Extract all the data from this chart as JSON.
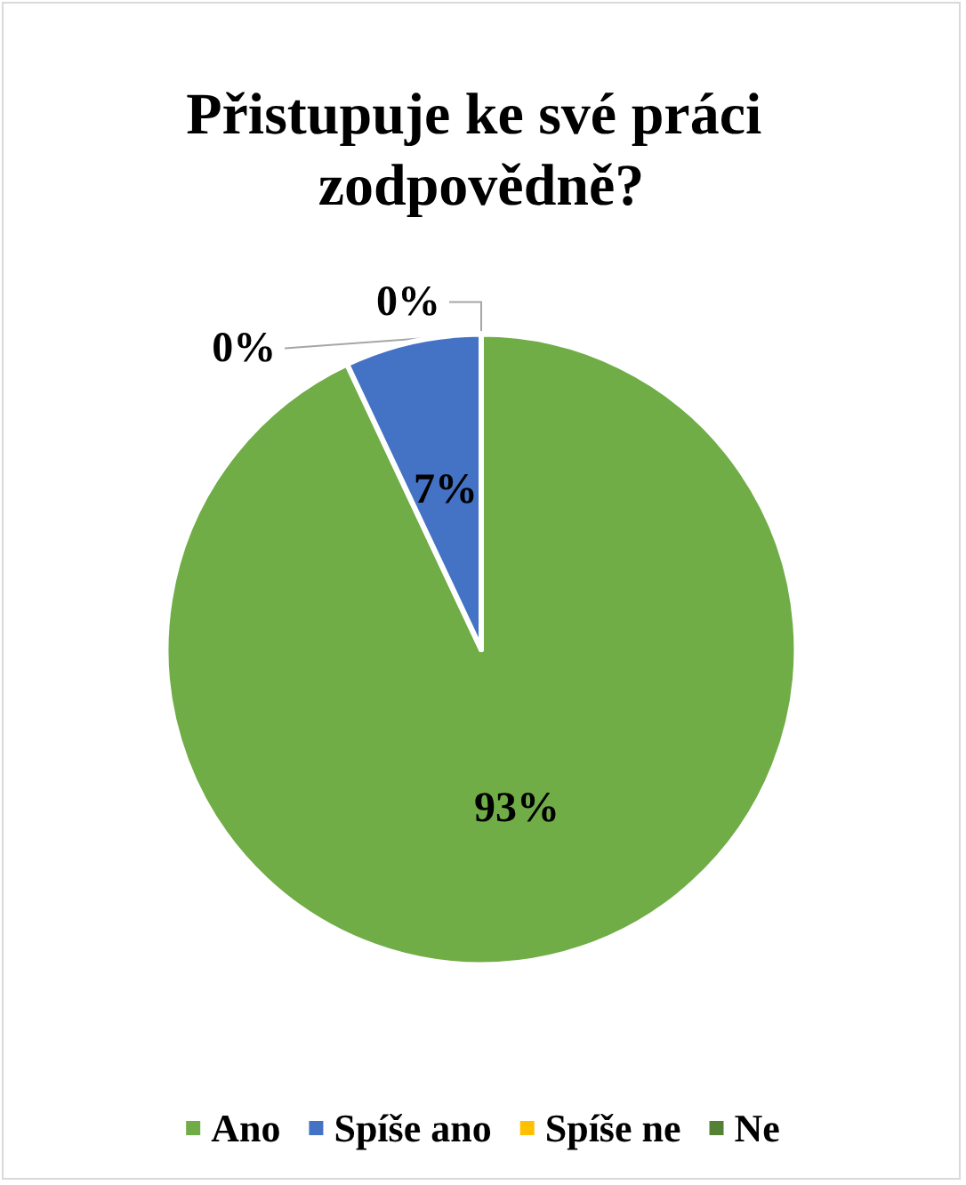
{
  "chart_data": {
    "type": "pie",
    "title": "Přistupuje ke své práci zodpovědně?",
    "categories": [
      "Ano",
      "Spíše ano",
      "Spíše ne",
      "Ne"
    ],
    "values": [
      93,
      7,
      0,
      0
    ],
    "colors": [
      "#70ad47",
      "#4472c4",
      "#ffc000",
      "#548235"
    ],
    "value_labels": [
      "93%",
      "7%",
      "0%",
      "0%"
    ],
    "legend": "bottom"
  }
}
